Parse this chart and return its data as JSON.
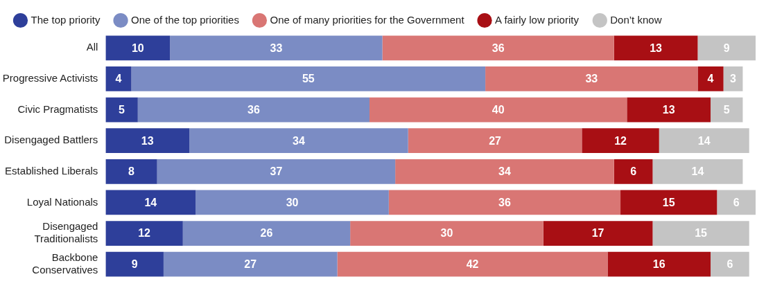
{
  "chart_data": {
    "type": "bar",
    "orientation": "horizontal",
    "stacked": true,
    "data_labels": true,
    "legend": "top left",
    "categories": [
      "All",
      "Progressive Activists",
      "Civic Pragmatists",
      "Disengaged Battlers",
      "Established Liberals",
      "Loyal Nationals",
      "Disengaged Traditionalists",
      "Backbone Conservatives"
    ],
    "series": [
      {
        "name": "The top priority",
        "color": "#2e3f9a",
        "values": [
          10,
          4,
          5,
          13,
          8,
          14,
          12,
          9
        ]
      },
      {
        "name": "One of the top priorities",
        "color": "#7b8cc4",
        "values": [
          33,
          55,
          36,
          34,
          37,
          30,
          26,
          27
        ]
      },
      {
        "name": "One of many priorities for the Government",
        "color": "#d97674",
        "values": [
          36,
          33,
          40,
          27,
          34,
          36,
          30,
          42
        ]
      },
      {
        "name": "A fairly low priority",
        "color": "#a80f14",
        "values": [
          13,
          4,
          13,
          12,
          6,
          15,
          17,
          16
        ]
      },
      {
        "name": "Don’t know",
        "color": "#c4c4c4",
        "values": [
          9,
          3,
          5,
          14,
          14,
          6,
          15,
          6
        ]
      }
    ]
  }
}
